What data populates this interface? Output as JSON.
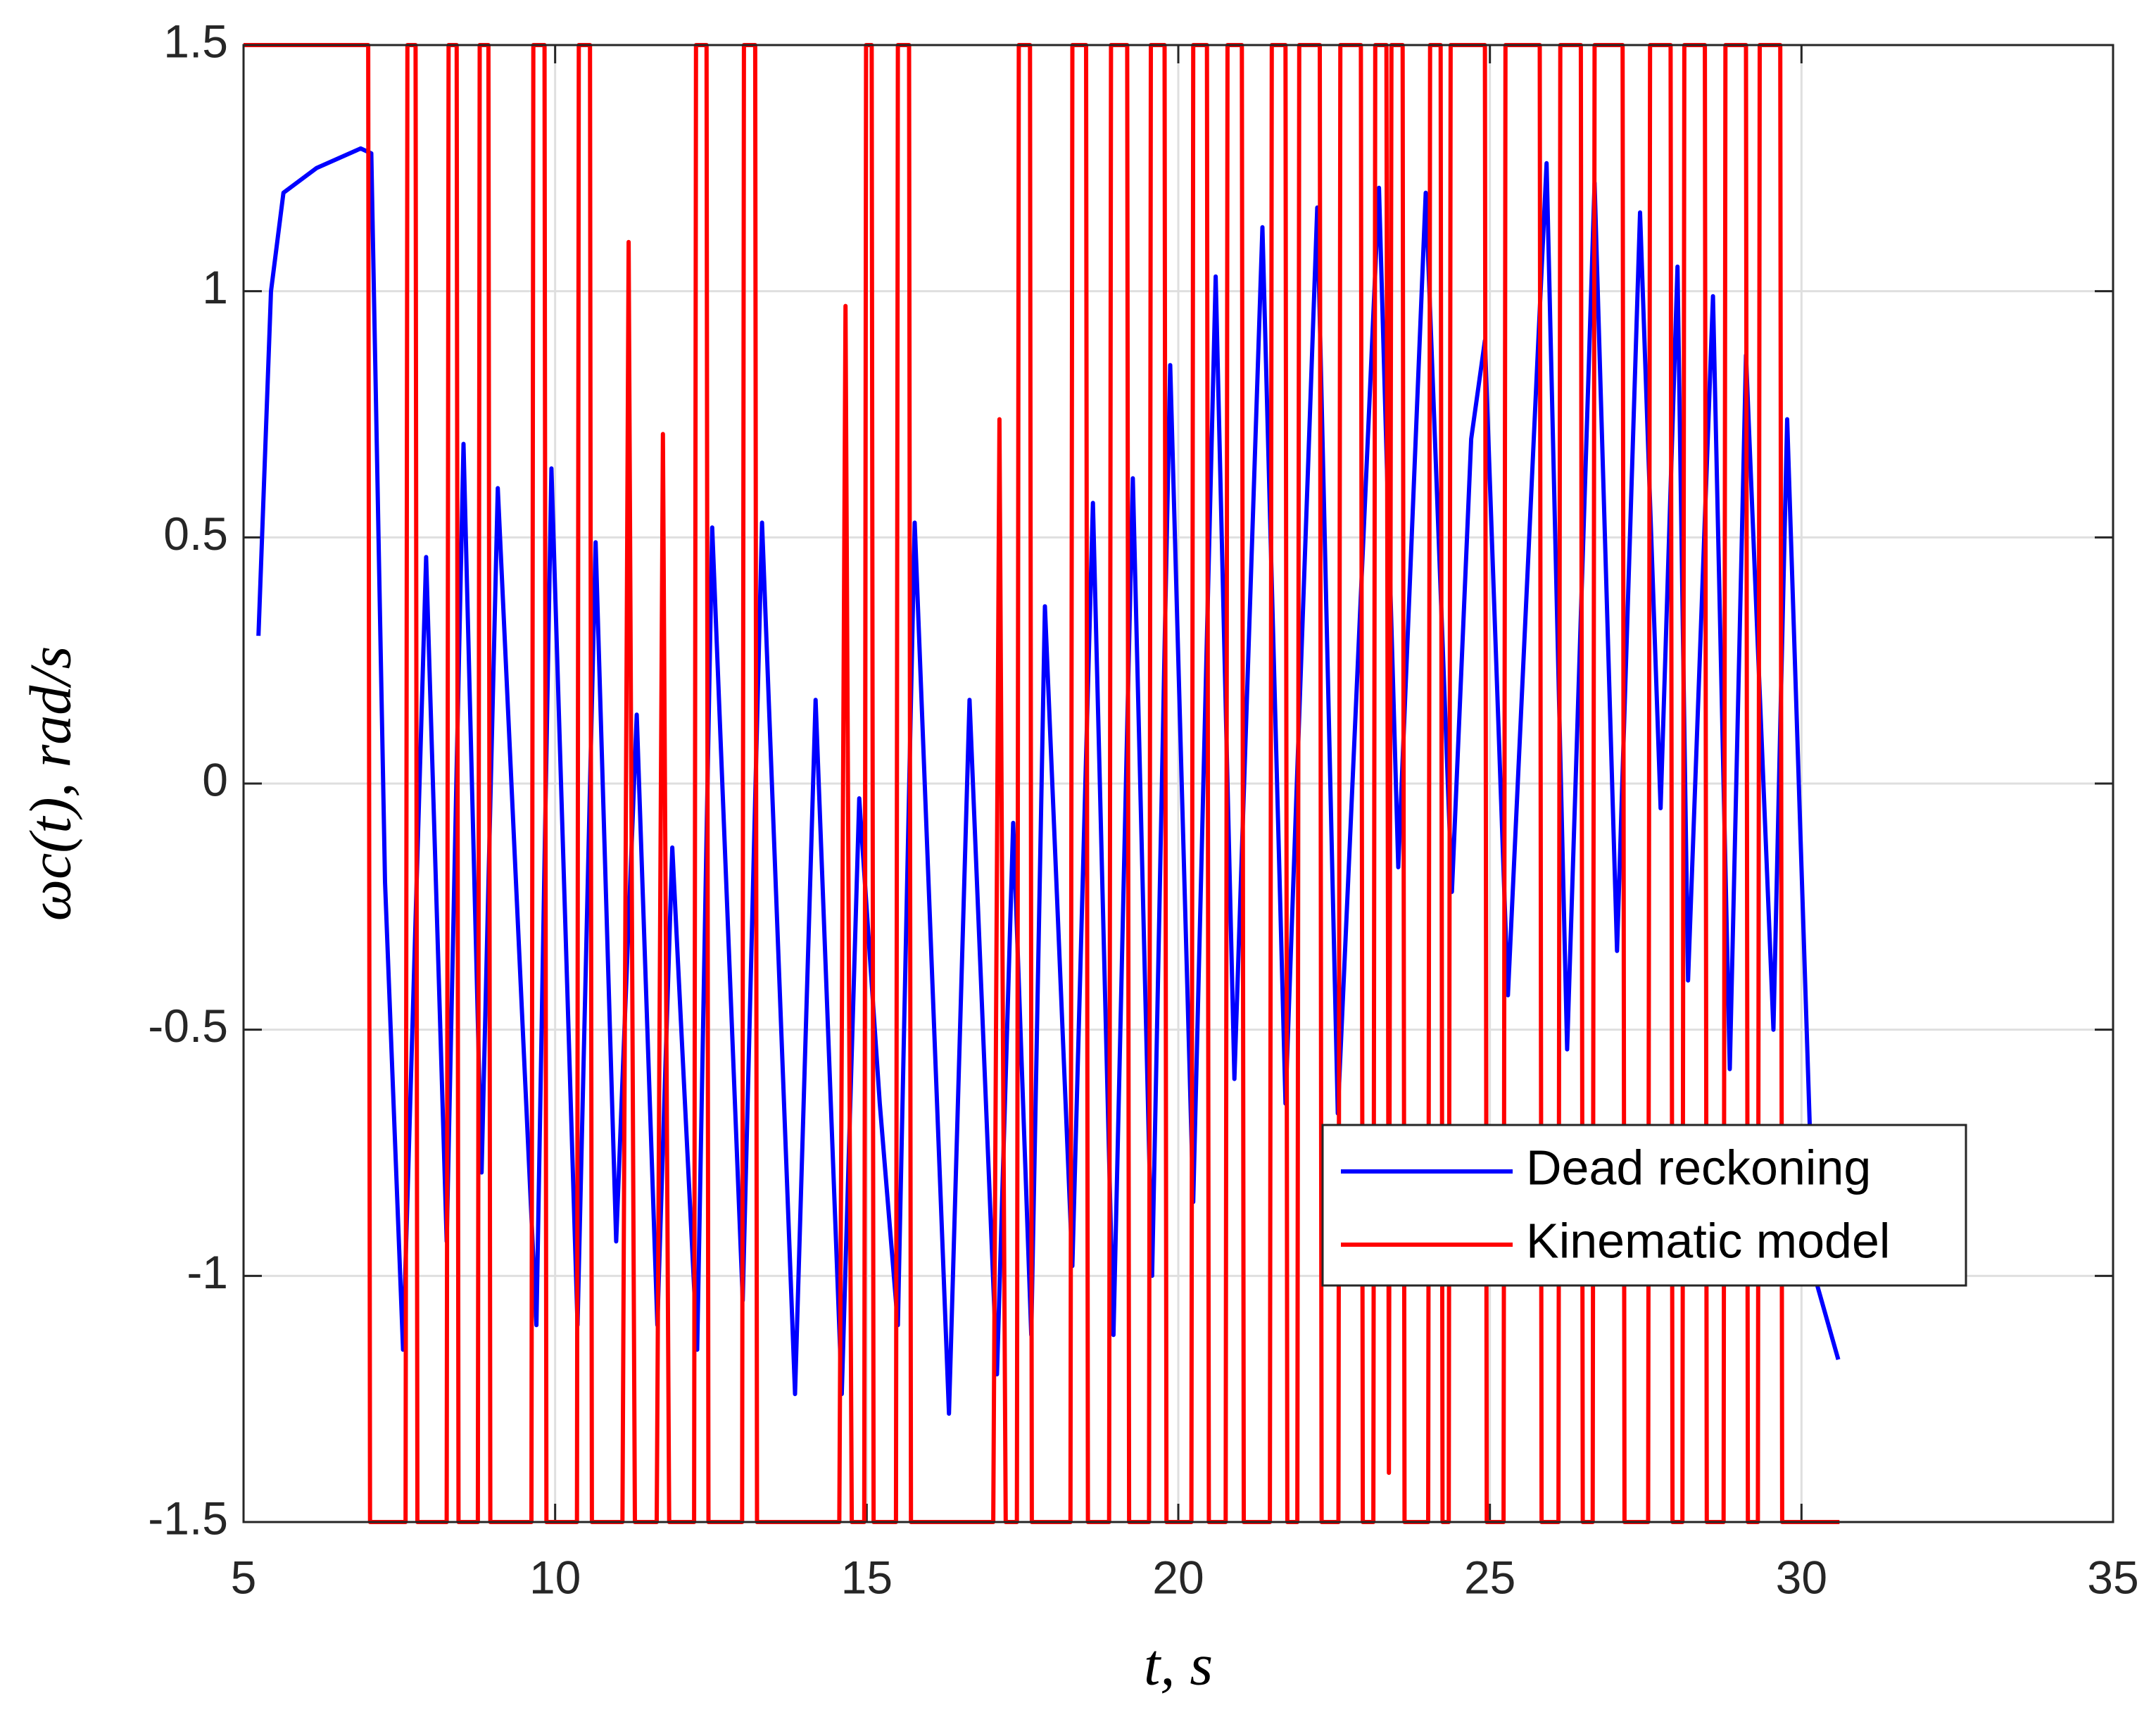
{
  "chart_data": {
    "type": "line",
    "xlabel": "t, s",
    "ylabel": "ωc(t), rad/s",
    "xlim": [
      5,
      35
    ],
    "ylim": [
      -1.5,
      1.5
    ],
    "xticks": [
      5,
      10,
      15,
      20,
      25,
      30,
      35
    ],
    "yticks": [
      -1.5,
      -1,
      -0.5,
      0,
      0.5,
      1,
      1.5
    ],
    "grid": true,
    "legend": "lower right",
    "series": [
      {
        "name": "Dead reckoning",
        "color": "#0000ff",
        "x": [
          5.24,
          5.44,
          5.64,
          6.17,
          6.88,
          7.05,
          7.27,
          7.56,
          7.93,
          8.26,
          8.53,
          8.82,
          9.08,
          9.7,
          9.94,
          10.36,
          10.65,
          10.98,
          11.31,
          11.64,
          11.88,
          12.28,
          12.52,
          13.01,
          13.32,
          13.85,
          14.18,
          14.6,
          14.88,
          15.21,
          15.5,
          15.77,
          16.32,
          16.65,
          17.09,
          17.35,
          17.64,
          17.86,
          18.3,
          18.63,
          18.96,
          19.27,
          19.58,
          19.87,
          20.24,
          20.6,
          20.9,
          21.35,
          21.72,
          22.23,
          22.56,
          23.22,
          23.53,
          23.97,
          24.39,
          24.7,
          24.92,
          25.29,
          25.91,
          26.24,
          26.68,
          27.04,
          27.41,
          27.74,
          28.01,
          28.18,
          28.58,
          28.85,
          29.11,
          29.55,
          29.77,
          30.21,
          30.59
        ],
        "values": [
          0.3,
          1.0,
          1.2,
          1.25,
          1.29,
          1.28,
          -0.2,
          -1.15,
          0.46,
          -0.93,
          0.69,
          -0.79,
          0.6,
          -1.1,
          0.64,
          -1.1,
          0.49,
          -0.93,
          0.14,
          -1.1,
          -0.13,
          -1.15,
          0.52,
          -1.05,
          0.53,
          -1.24,
          0.17,
          -1.24,
          -0.03,
          -0.65,
          -1.1,
          0.53,
          -1.28,
          0.17,
          -1.2,
          -0.08,
          -1.12,
          0.36,
          -0.98,
          0.57,
          -1.12,
          0.62,
          -1.0,
          0.85,
          -0.85,
          1.03,
          -0.6,
          1.13,
          -0.65,
          1.17,
          -0.67,
          1.21,
          -0.17,
          1.2,
          -0.22,
          0.7,
          0.9,
          -0.43,
          1.26,
          -0.54,
          1.22,
          -0.34,
          1.16,
          -0.05,
          1.05,
          -0.4,
          0.99,
          -0.58,
          0.87,
          -0.5,
          0.74,
          -1.0,
          -1.17
        ]
      },
      {
        "name": "Kinematic model",
        "color": "#ff0000",
        "x": [
          5.0,
          7.0,
          7.03,
          7.6,
          7.63,
          7.76,
          7.79,
          8.26,
          8.29,
          8.42,
          8.45,
          8.76,
          8.79,
          8.93,
          8.96,
          9.62,
          9.65,
          9.83,
          9.86,
          10.35,
          10.38,
          10.56,
          10.59,
          11.08,
          11.18,
          11.28,
          11.63,
          11.73,
          11.83,
          12.23,
          12.26,
          12.43,
          12.46,
          13.0,
          13.03,
          13.21,
          13.24,
          14.56,
          14.66,
          14.76,
          14.96,
          14.99,
          15.08,
          15.11,
          15.47,
          15.5,
          15.68,
          15.71,
          17.03,
          17.13,
          17.23,
          17.41,
          17.44,
          17.62,
          17.65,
          18.27,
          18.3,
          18.52,
          18.55,
          18.89,
          18.92,
          19.18,
          19.21,
          19.53,
          19.56,
          19.78,
          19.81,
          20.21,
          20.24,
          20.46,
          20.49,
          20.76,
          20.79,
          21.02,
          21.05,
          21.47,
          21.5,
          21.72,
          21.75,
          21.91,
          21.94,
          22.27,
          22.3,
          22.57,
          22.6,
          22.93,
          22.96,
          23.13,
          23.16,
          23.34,
          23.38,
          23.42,
          23.6,
          23.63,
          24.01,
          24.04,
          24.21,
          24.24,
          24.34,
          24.37,
          24.92,
          24.95,
          25.22,
          25.25,
          25.8,
          25.83,
          26.1,
          26.13,
          26.46,
          26.49,
          26.65,
          26.68,
          27.13,
          27.16,
          27.54,
          27.57,
          27.9,
          27.93,
          28.09,
          28.12,
          28.45,
          28.48,
          28.75,
          28.78,
          29.11,
          29.14,
          29.3,
          29.33,
          29.66,
          29.69,
          30.61
        ],
        "values": [
          1.5,
          1.5,
          -1.5,
          -1.5,
          1.5,
          1.5,
          -1.5,
          -1.5,
          1.5,
          1.5,
          -1.5,
          -1.5,
          1.5,
          1.5,
          -1.5,
          -1.5,
          1.5,
          1.5,
          -1.5,
          -1.5,
          1.5,
          1.5,
          -1.5,
          -1.5,
          1.1,
          -1.5,
          -1.5,
          0.71,
          -1.5,
          -1.5,
          1.5,
          1.5,
          -1.5,
          -1.5,
          1.5,
          1.5,
          -1.5,
          -1.5,
          0.97,
          -1.5,
          -1.5,
          1.5,
          1.5,
          -1.5,
          -1.5,
          1.5,
          1.5,
          -1.5,
          -1.5,
          0.74,
          -1.5,
          -1.5,
          1.5,
          1.5,
          -1.5,
          -1.5,
          1.5,
          1.5,
          -1.5,
          -1.5,
          1.5,
          1.5,
          -1.5,
          -1.5,
          1.5,
          1.5,
          -1.5,
          -1.5,
          1.5,
          1.5,
          -1.5,
          -1.5,
          1.5,
          1.5,
          -1.5,
          -1.5,
          1.5,
          1.5,
          -1.5,
          -1.5,
          1.5,
          1.5,
          -1.5,
          -1.5,
          1.5,
          1.5,
          -1.5,
          -1.5,
          1.5,
          1.5,
          -1.4,
          1.5,
          1.5,
          -1.5,
          -1.5,
          1.5,
          1.5,
          -1.5,
          -1.5,
          1.5,
          1.5,
          -1.5,
          -1.5,
          1.5,
          1.5,
          -1.5,
          -1.5,
          1.5,
          1.5,
          -1.5,
          -1.5,
          1.5,
          1.5,
          -1.5,
          -1.5,
          1.5,
          1.5,
          -1.5,
          -1.5,
          1.5,
          1.5,
          -1.5,
          -1.5,
          1.5,
          1.5,
          -1.5,
          -1.5,
          1.5,
          1.5,
          -1.5,
          -1.5
        ]
      }
    ]
  }
}
